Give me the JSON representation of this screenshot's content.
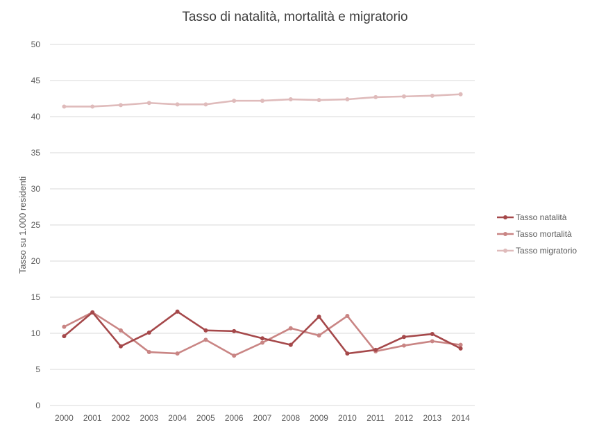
{
  "chart_data": {
    "type": "line",
    "title": "Tasso di natalità, mortalità e migratorio",
    "xlabel": "",
    "ylabel": "Tasso su 1.000 residenti",
    "ylim": [
      0,
      50
    ],
    "yticks": [
      0,
      5,
      10,
      15,
      20,
      25,
      30,
      35,
      40,
      45,
      50
    ],
    "grid": true,
    "legend_position": "right",
    "categories": [
      "2000",
      "2001",
      "2002",
      "2003",
      "2004",
      "2005",
      "2006",
      "2007",
      "2008",
      "2009",
      "2010",
      "2011",
      "2012",
      "2013",
      "2014"
    ],
    "series": [
      {
        "name": "Tasso natalità",
        "color": "#a5484a",
        "values": [
          9.6,
          12.9,
          8.2,
          10.1,
          13.0,
          10.4,
          10.3,
          9.3,
          8.4,
          12.3,
          7.2,
          7.7,
          9.5,
          9.9,
          7.9
        ]
      },
      {
        "name": "Tasso mortalità",
        "color": "#c98584",
        "values": [
          10.9,
          12.9,
          10.4,
          7.4,
          7.2,
          9.1,
          6.9,
          8.7,
          10.7,
          9.7,
          12.4,
          7.5,
          8.3,
          8.9,
          8.4
        ]
      },
      {
        "name": "Tasso migratorio",
        "color": "#dfbbbb",
        "values": [
          41.4,
          41.4,
          41.6,
          41.9,
          41.7,
          41.7,
          42.2,
          42.2,
          42.4,
          42.3,
          42.4,
          42.7,
          42.8,
          42.9,
          43.1
        ]
      }
    ]
  }
}
